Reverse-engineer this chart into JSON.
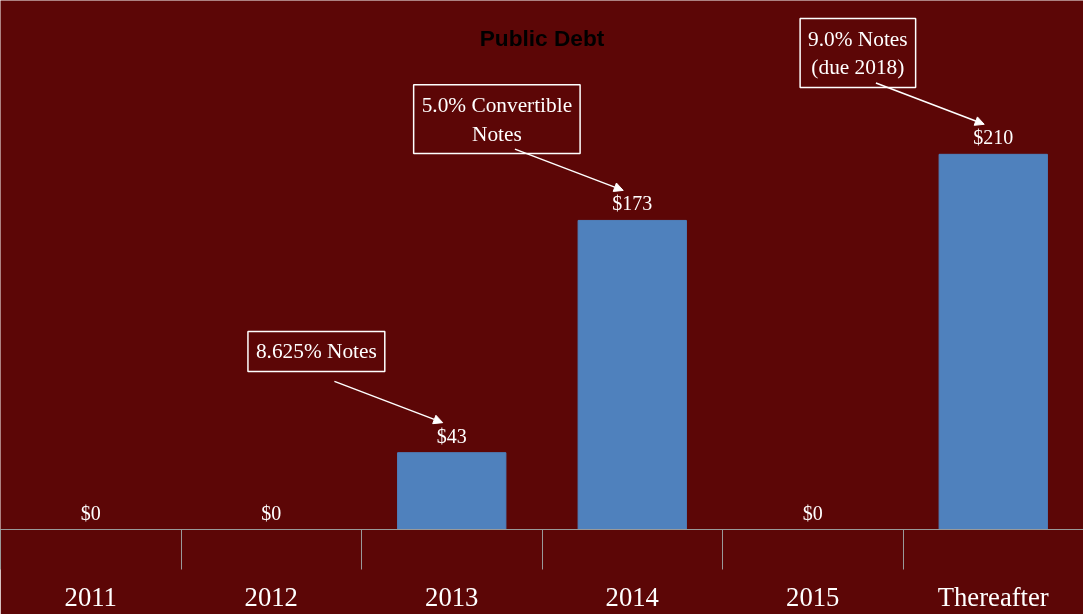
{
  "chart_data": {
    "type": "bar",
    "title": "Public Debt",
    "categories": [
      "2011",
      "2012",
      "2013",
      "2014",
      "2015",
      "Thereafter"
    ],
    "values": [
      0,
      0,
      43,
      173,
      0,
      210
    ],
    "value_labels": [
      "$0",
      "$0",
      "$43",
      "$173",
      "$0",
      "$210"
    ],
    "color": "#4f81bd",
    "annotations": [
      "8.625% Notes",
      "5.0% Convertible\nNotes",
      "9.0% Notes\n(due 2018)"
    ],
    "grid": false
  }
}
